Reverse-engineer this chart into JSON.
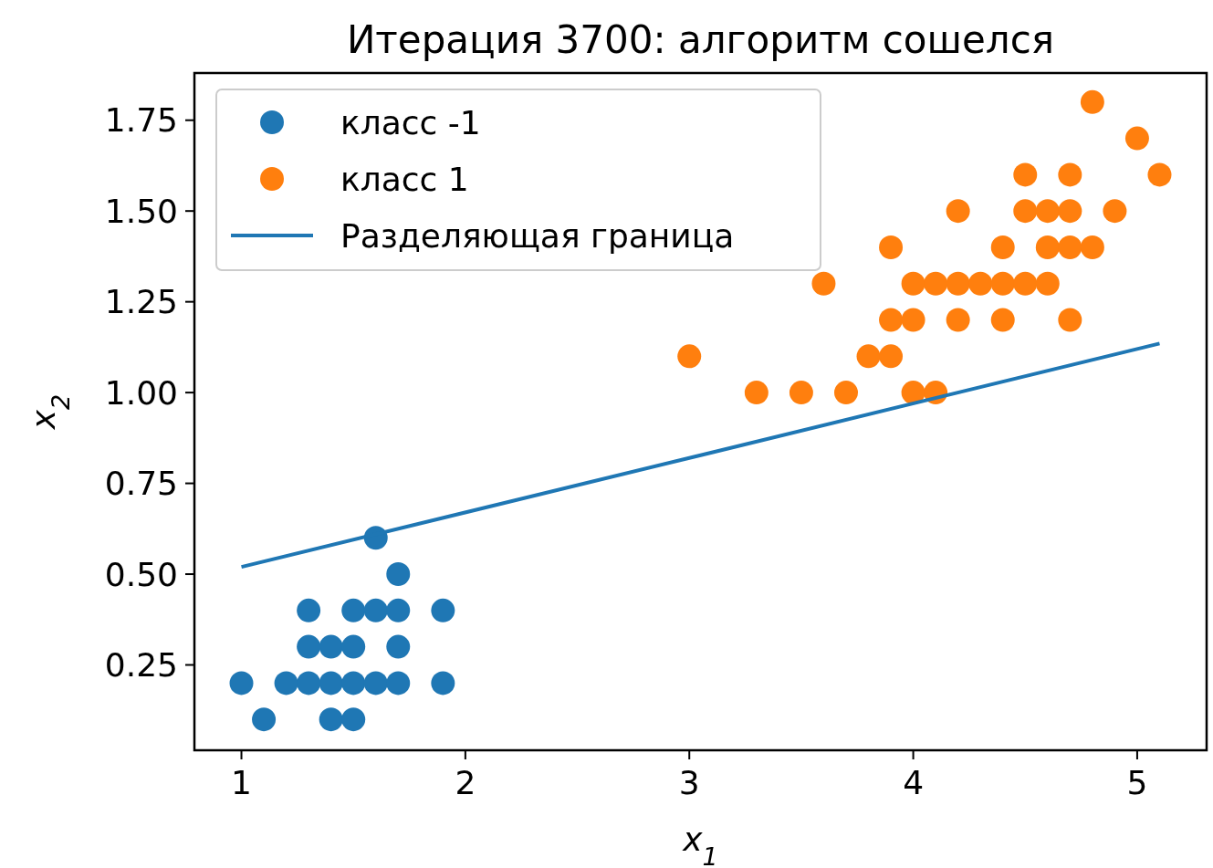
{
  "chart_data": {
    "type": "scatter",
    "title": "Итерация 3700: алгоритм сошелся",
    "xlabel": "x$_{1}$",
    "ylabel": "x$_{2}$",
    "xlim": [
      0.79,
      5.31
    ],
    "ylim": [
      0.015,
      1.88
    ],
    "xticks": [
      1,
      2,
      3,
      4,
      5
    ],
    "yticks": [
      {
        "value": 0.25,
        "label": "0.25"
      },
      {
        "value": 0.5,
        "label": "0.50"
      },
      {
        "value": 0.75,
        "label": "0.75"
      },
      {
        "value": 1,
        "label": "1.00"
      },
      {
        "value": 1.25,
        "label": "1.25"
      },
      {
        "value": 1.5,
        "label": "1.50"
      },
      {
        "value": 1.75,
        "label": "1.75"
      }
    ],
    "legend": "top left",
    "grid": false,
    "series": [
      {
        "name": "класс -1",
        "marker": "circle",
        "color": "#1f77b4",
        "x": [
          1.0,
          1.1,
          1.2,
          1.3,
          1.3,
          1.3,
          1.4,
          1.4,
          1.4,
          1.5,
          1.5,
          1.5,
          1.5,
          1.6,
          1.6,
          1.6,
          1.7,
          1.7,
          1.7,
          1.7,
          1.9,
          1.9
        ],
        "values": [
          0.2,
          0.1,
          0.2,
          0.2,
          0.3,
          0.4,
          0.1,
          0.2,
          0.3,
          0.1,
          0.2,
          0.3,
          0.4,
          0.2,
          0.4,
          0.6,
          0.2,
          0.3,
          0.4,
          0.5,
          0.2,
          0.4
        ]
      },
      {
        "name": "класс 1",
        "marker": "circle",
        "color": "#ff7f0e",
        "x": [
          3.0,
          3.3,
          3.5,
          3.6,
          3.7,
          3.8,
          3.9,
          3.9,
          3.9,
          4.0,
          4.0,
          4.0,
          4.1,
          4.1,
          4.2,
          4.2,
          4.2,
          4.3,
          4.4,
          4.4,
          4.4,
          4.5,
          4.5,
          4.5,
          4.6,
          4.6,
          4.6,
          4.7,
          4.7,
          4.7,
          4.7,
          4.8,
          4.8,
          4.9,
          5.0,
          5.1
        ],
        "values": [
          1.1,
          1.0,
          1.0,
          1.3,
          1.0,
          1.1,
          1.1,
          1.2,
          1.4,
          1.0,
          1.2,
          1.3,
          1.0,
          1.3,
          1.2,
          1.3,
          1.5,
          1.3,
          1.2,
          1.3,
          1.4,
          1.3,
          1.5,
          1.6,
          1.3,
          1.4,
          1.5,
          1.2,
          1.4,
          1.5,
          1.6,
          1.4,
          1.8,
          1.5,
          1.7,
          1.6
        ]
      },
      {
        "name": "Разделяющая граница",
        "type": "line",
        "color": "#1f77b4",
        "x": [
          1.0,
          5.1
        ],
        "values": [
          0.52,
          1.135
        ]
      }
    ]
  }
}
